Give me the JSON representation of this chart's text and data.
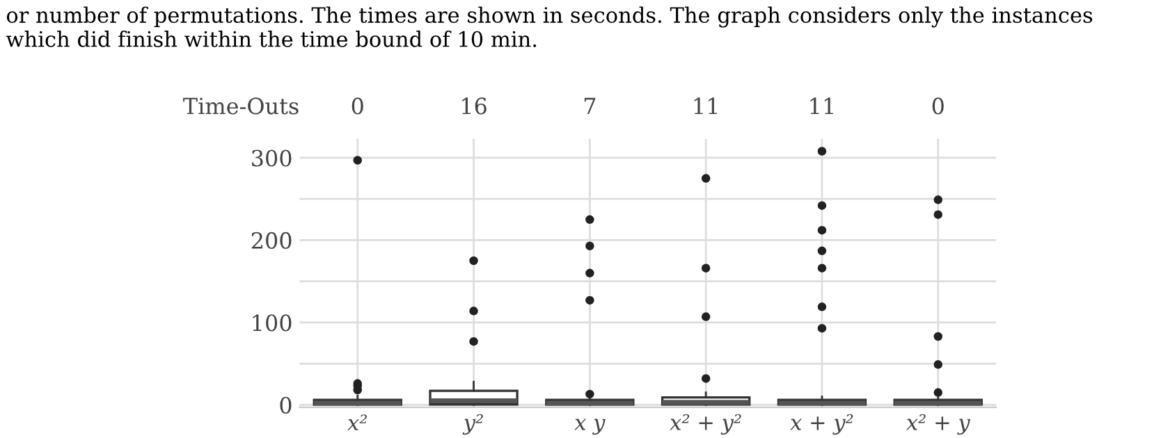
{
  "chart_data": {
    "type": "box",
    "categories": [
      "x²",
      "y²",
      "x y",
      "x² + y²",
      "x + y²",
      "x² + y"
    ],
    "boxes": [
      {
        "low": 0,
        "q1": 0.5,
        "median": 2,
        "q3": 6,
        "high": 11,
        "outliers": [
          297,
          26,
          23,
          18
        ]
      },
      {
        "low": 0,
        "q1": 0.5,
        "median": 5,
        "q3": 17,
        "high": 28,
        "outliers": [
          175,
          114,
          77
        ]
      },
      {
        "low": 0,
        "q1": 0.5,
        "median": 2,
        "q3": 6,
        "high": 8,
        "outliers": [
          225,
          193,
          160,
          127,
          13
        ]
      },
      {
        "low": 0,
        "q1": 0.5,
        "median": 3,
        "q3": 9,
        "high": 15,
        "outliers": [
          275,
          166,
          107,
          32
        ]
      },
      {
        "low": 0,
        "q1": 0.5,
        "median": 2,
        "q3": 6,
        "high": 10,
        "outliers": [
          308,
          242,
          212,
          187,
          166,
          119,
          93
        ]
      },
      {
        "low": 0,
        "q1": 0.5,
        "median": 2,
        "q3": 6,
        "high": 9,
        "outliers": [
          249,
          231,
          83,
          49,
          15
        ]
      }
    ],
    "ylim": [
      -3,
      323
    ],
    "yticks": [
      0,
      {
        "value": 50,
        "label": null
      },
      100,
      {
        "value": 150,
        "label": null
      },
      200,
      {
        "value": 250,
        "label": null
      },
      300
    ],
    "grid": true,
    "annotations": [
      "or number of permutations. The times are shown in seconds. The graph considers only the instances which did finish within the time bound of 10 min.",
      "Time-Outs",
      "0",
      "16",
      "7",
      "11",
      "11",
      "0"
    ]
  }
}
